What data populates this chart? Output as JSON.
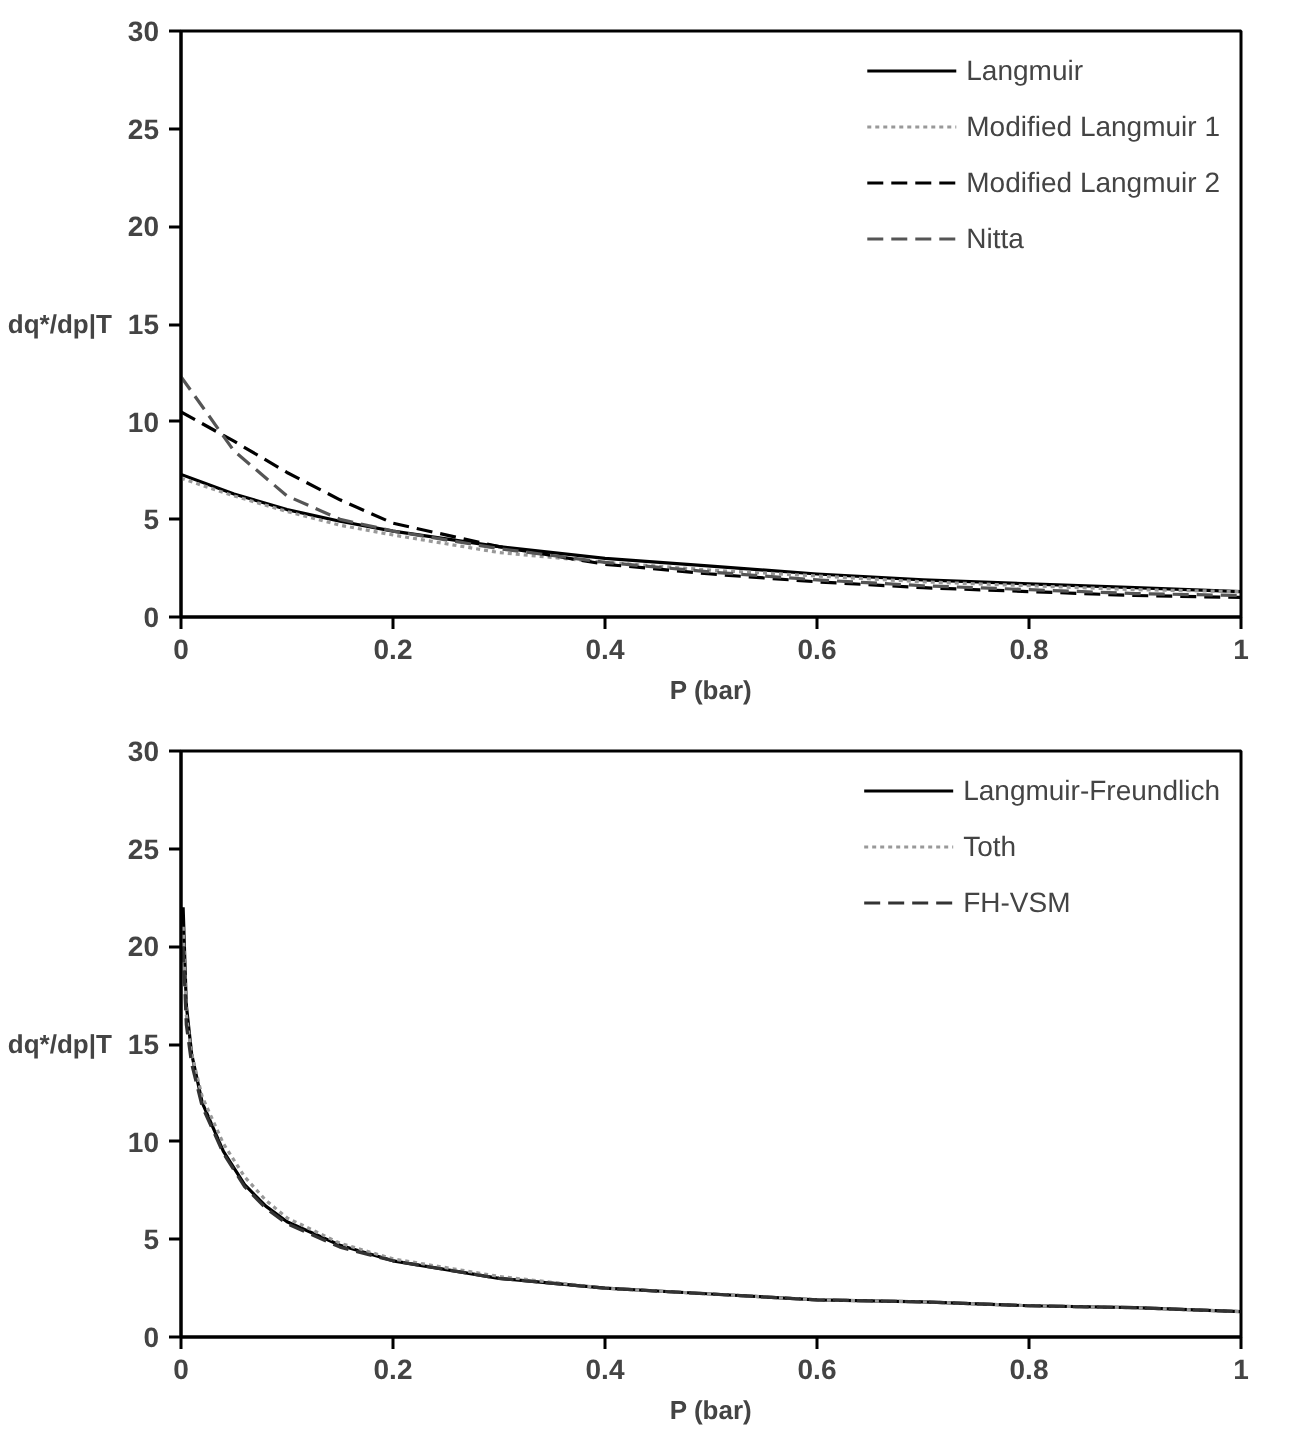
{
  "chart_data": [
    {
      "type": "line",
      "xlabel": "P (bar)",
      "ylabel": "dq*/dp|T",
      "xlim": [
        0,
        1
      ],
      "ylim": [
        0,
        30
      ],
      "xticks": [
        0,
        0.2,
        0.4,
        0.6,
        0.8,
        1
      ],
      "yticks": [
        0,
        5,
        10,
        15,
        20,
        25,
        30
      ],
      "grid": false,
      "legend": "top right",
      "marker": "none",
      "x": [
        0,
        0.05,
        0.1,
        0.15,
        0.2,
        0.3,
        0.4,
        0.5,
        0.6,
        0.7,
        0.8,
        0.9,
        1
      ],
      "series": [
        {
          "name": "Langmuir",
          "color": "#000000",
          "line_style": "solid",
          "values": [
            7.3,
            6.3,
            5.5,
            4.9,
            4.4,
            3.6,
            3.0,
            2.6,
            2.2,
            1.9,
            1.7,
            1.5,
            1.3
          ]
        },
        {
          "name": "Modified Langmuir 1",
          "color": "#999999",
          "line_style": "dotted",
          "values": [
            7.1,
            6.2,
            5.4,
            4.7,
            4.2,
            3.3,
            2.8,
            2.4,
            2.1,
            1.8,
            1.6,
            1.4,
            1.3
          ]
        },
        {
          "name": "Modified Langmuir 2",
          "color": "#000000",
          "line_style": "dashed",
          "values": [
            10.5,
            9.0,
            7.4,
            6.0,
            4.8,
            3.6,
            2.7,
            2.2,
            1.8,
            1.5,
            1.3,
            1.1,
            1.0
          ]
        },
        {
          "name": "Nitta",
          "color": "#555555",
          "line_style": "dashed",
          "values": [
            12.3,
            8.5,
            6.2,
            5.0,
            4.4,
            3.5,
            2.8,
            2.3,
            1.9,
            1.6,
            1.4,
            1.2,
            1.1
          ]
        }
      ]
    },
    {
      "type": "line",
      "xlabel": "P (bar)",
      "ylabel": "dq*/dp|T",
      "xlim": [
        0,
        1
      ],
      "ylim": [
        0,
        30
      ],
      "xticks": [
        0,
        0.2,
        0.4,
        0.6,
        0.8,
        1
      ],
      "yticks": [
        0,
        5,
        10,
        15,
        20,
        25,
        30
      ],
      "grid": false,
      "legend": "top right",
      "marker": "none",
      "x": [
        0.002,
        0.005,
        0.01,
        0.02,
        0.04,
        0.06,
        0.08,
        0.1,
        0.15,
        0.2,
        0.3,
        0.4,
        0.5,
        0.6,
        0.7,
        0.8,
        0.9,
        1
      ],
      "series": [
        {
          "name": "Langmuir-Freundlich",
          "color": "#000000",
          "line_style": "solid",
          "values": [
            22,
            17,
            14.5,
            12,
            9.5,
            7.8,
            6.7,
            5.9,
            4.7,
            3.9,
            3.0,
            2.5,
            2.2,
            1.9,
            1.8,
            1.6,
            1.5,
            1.3
          ]
        },
        {
          "name": "Toth",
          "color": "#999999",
          "line_style": "dotted",
          "values": [
            21,
            16.5,
            14.5,
            12.3,
            9.9,
            8.2,
            7.0,
            6.1,
            4.8,
            4.0,
            3.1,
            2.5,
            2.2,
            1.9,
            1.8,
            1.6,
            1.5,
            1.3
          ]
        },
        {
          "name": "FH-VSM",
          "color": "#333333",
          "line_style": "dashed",
          "values": [
            20,
            16,
            14,
            11.8,
            9.4,
            7.7,
            6.6,
            5.8,
            4.6,
            3.9,
            3.0,
            2.5,
            2.2,
            1.9,
            1.8,
            1.6,
            1.5,
            1.3
          ]
        }
      ]
    }
  ]
}
